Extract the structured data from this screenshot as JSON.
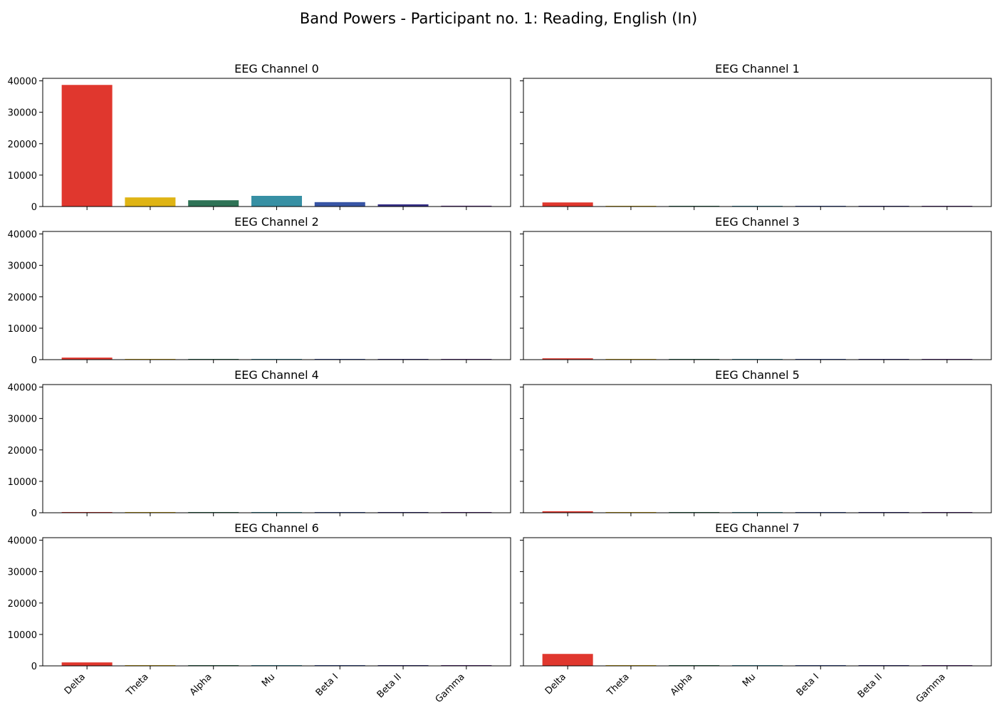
{
  "suptitle": "Band Powers - Participant no. 1: Reading, English (In)",
  "chart_data": {
    "type": "bar",
    "layout": "4x2 grid, shared y-axis, shared x-axis",
    "categories": [
      "Delta",
      "Theta",
      "Alpha",
      "Mu",
      "Beta I",
      "Beta II",
      "Gamma"
    ],
    "bar_colors": [
      "#e0372e",
      "#dfb414",
      "#2e7356",
      "#3790a4",
      "#3855a5",
      "#352f86",
      "#5a2c82"
    ],
    "ylim": [
      0,
      40800
    ],
    "yticks": [
      0,
      10000,
      20000,
      30000,
      40000
    ],
    "grid": false,
    "panels": [
      {
        "title": "EEG Channel 0",
        "values": [
          38700,
          2900,
          2000,
          3400,
          1400,
          700,
          250
        ]
      },
      {
        "title": "EEG Channel 1",
        "values": [
          1300,
          150,
          30,
          40,
          120,
          180,
          200
        ]
      },
      {
        "title": "EEG Channel 2",
        "values": [
          650,
          120,
          20,
          20,
          40,
          160,
          30
        ]
      },
      {
        "title": "EEG Channel 3",
        "values": [
          420,
          110,
          20,
          20,
          30,
          170,
          150
        ]
      },
      {
        "title": "EEG Channel 4",
        "values": [
          180,
          140,
          20,
          20,
          110,
          120,
          90
        ]
      },
      {
        "title": "EEG Channel 5",
        "values": [
          480,
          140,
          20,
          20,
          120,
          130,
          150
        ]
      },
      {
        "title": "EEG Channel 6",
        "values": [
          1100,
          150,
          60,
          60,
          70,
          140,
          120
        ]
      },
      {
        "title": "EEG Channel 7",
        "values": [
          3800,
          180,
          90,
          80,
          90,
          110,
          110
        ]
      }
    ]
  }
}
